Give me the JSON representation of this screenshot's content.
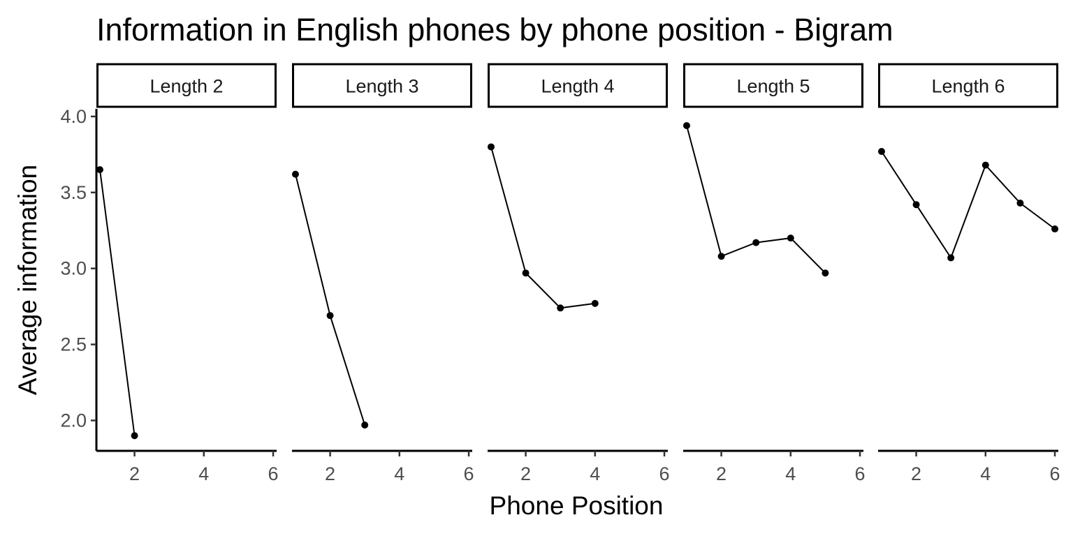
{
  "chart_data": {
    "type": "line",
    "title": "Information in English phones by phone position - Bigram",
    "xlabel": "Phone Position",
    "ylabel": "Average information",
    "xlim": [
      0.9,
      6.1
    ],
    "ylim": [
      1.8,
      4.05
    ],
    "x_ticks": [
      2,
      4,
      6
    ],
    "y_ticks": [
      2.0,
      2.5,
      3.0,
      3.5,
      4.0
    ],
    "y_tick_labels": [
      "2.0",
      "2.5",
      "3.0",
      "3.5",
      "4.0"
    ],
    "grid": false,
    "colors": {
      "line": "#000000",
      "point": "#000000"
    },
    "facets": [
      {
        "label": "Length 2",
        "x": [
          1,
          2
        ],
        "y": [
          3.65,
          1.9
        ]
      },
      {
        "label": "Length 3",
        "x": [
          1,
          2,
          3
        ],
        "y": [
          3.62,
          2.69,
          1.97
        ]
      },
      {
        "label": "Length 4",
        "x": [
          1,
          2,
          3,
          4
        ],
        "y": [
          3.8,
          2.97,
          2.74,
          2.77
        ]
      },
      {
        "label": "Length 5",
        "x": [
          1,
          2,
          3,
          4,
          5
        ],
        "y": [
          3.94,
          3.08,
          3.17,
          3.2,
          2.97
        ]
      },
      {
        "label": "Length 6",
        "x": [
          1,
          2,
          3,
          4,
          5,
          6
        ],
        "y": [
          3.77,
          3.42,
          3.07,
          3.68,
          3.43,
          3.26
        ]
      }
    ]
  }
}
